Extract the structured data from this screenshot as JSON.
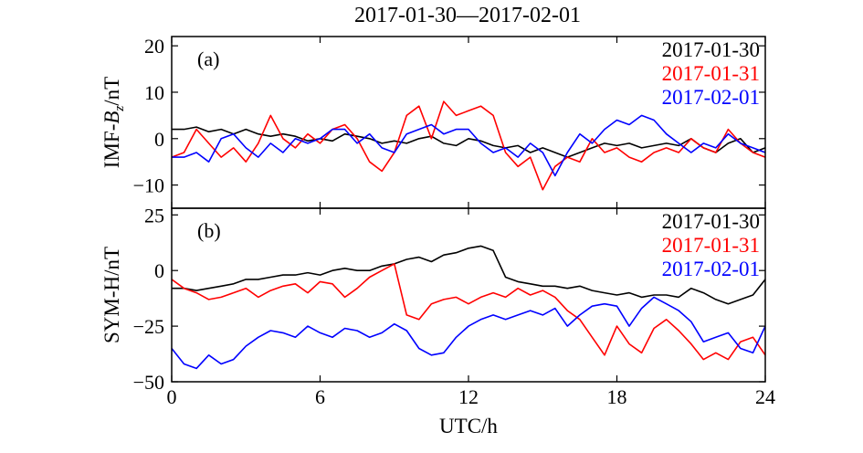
{
  "title": "2017-01-30—2017-02-01",
  "chart_data": [
    {
      "type": "line",
      "panel_label": "(a)",
      "ylabel_prefix": "IMF-",
      "ylabel_var": "B",
      "ylabel_sub": "z",
      "ylabel_suffix": "/nT",
      "xlim": [
        0,
        24
      ],
      "ylim": [
        -15,
        22
      ],
      "yticks": [
        -10,
        0,
        10,
        20
      ],
      "yticklabels": [
        "−10",
        "0",
        "10",
        "20"
      ],
      "legend_position": "top-right",
      "series": [
        {
          "name": "2017-01-30",
          "color": "#000000",
          "x": [
            0,
            0.5,
            1,
            1.5,
            2,
            2.5,
            3,
            3.5,
            4,
            4.5,
            5,
            5.5,
            6,
            6.5,
            7,
            7.5,
            8,
            8.5,
            9,
            9.5,
            10,
            10.5,
            11,
            11.5,
            12,
            12.5,
            13,
            13.5,
            14,
            14.5,
            15,
            15.5,
            16,
            16.5,
            17,
            17.5,
            18,
            18.5,
            19,
            19.5,
            20,
            20.5,
            21,
            21.5,
            22,
            22.5,
            23,
            23.5,
            24
          ],
          "values": [
            2,
            2,
            2.5,
            1.5,
            2,
            1,
            2,
            1,
            0.5,
            1,
            0.5,
            -0.5,
            0,
            -0.5,
            1,
            0.5,
            0,
            -1,
            -0.5,
            -1,
            0,
            0.5,
            -1,
            -1.5,
            0,
            -0.5,
            -1.5,
            -2,
            -1.5,
            -3,
            -2,
            -3,
            -4,
            -3,
            -2,
            -1,
            -1.5,
            -1,
            -2,
            -1.5,
            -1,
            -1.5,
            0,
            -2,
            -3,
            -1,
            0,
            -3,
            -2
          ]
        },
        {
          "name": "2017-01-31",
          "color": "#ff0000",
          "x": [
            0,
            0.5,
            1,
            1.5,
            2,
            2.5,
            3,
            3.5,
            4,
            4.5,
            5,
            5.5,
            6,
            6.5,
            7,
            7.5,
            8,
            8.5,
            9,
            9.5,
            10,
            10.5,
            11,
            11.5,
            12,
            12.5,
            13,
            13.5,
            14,
            14.5,
            15,
            15.5,
            16,
            16.5,
            17,
            17.5,
            18,
            18.5,
            19,
            19.5,
            20,
            20.5,
            21,
            21.5,
            22,
            22.5,
            23,
            23.5,
            24
          ],
          "values": [
            -4,
            -3,
            2,
            -1,
            -4,
            -2,
            -5,
            -1,
            5,
            0,
            -2,
            1,
            -1,
            2,
            3,
            0,
            -5,
            -7,
            -3,
            5,
            7,
            0,
            8,
            5,
            6,
            7,
            5,
            -3,
            -6,
            -4,
            -11,
            -6,
            -4,
            -5,
            0,
            -3,
            -2,
            -4,
            -5,
            -3,
            -2,
            -3,
            0,
            -2,
            -3,
            2,
            -1,
            -3,
            -4
          ]
        },
        {
          "name": "2017-02-01",
          "color": "#0000ff",
          "x": [
            0,
            0.5,
            1,
            1.5,
            2,
            2.5,
            3,
            3.5,
            4,
            4.5,
            5,
            5.5,
            6,
            6.5,
            7,
            7.5,
            8,
            8.5,
            9,
            9.5,
            10,
            10.5,
            11,
            11.5,
            12,
            12.5,
            13,
            13.5,
            14,
            14.5,
            15,
            15.5,
            16,
            16.5,
            17,
            17.5,
            18,
            18.5,
            19,
            19.5,
            20,
            20.5,
            21,
            21.5,
            22,
            22.5,
            23,
            23.5,
            24
          ],
          "values": [
            -4,
            -4,
            -3,
            -5,
            0,
            1,
            -2,
            -4,
            -1,
            -3,
            0,
            -1,
            0,
            2,
            2,
            -1,
            1,
            -2,
            -3,
            1,
            2,
            3,
            1,
            2,
            2,
            -1,
            -3,
            -2,
            -4,
            -1,
            -3,
            -8,
            -3,
            1,
            -1,
            2,
            4,
            3,
            5,
            4,
            1,
            -1,
            -3,
            -1,
            -2,
            1,
            -1,
            -2,
            -3
          ]
        }
      ]
    },
    {
      "type": "line",
      "panel_label": "(b)",
      "ylabel": "SYM-H/nT",
      "xlabel": "UTC/h",
      "xlim": [
        0,
        24
      ],
      "xticks": [
        0,
        6,
        12,
        18,
        24
      ],
      "xticklabels": [
        "0",
        "6",
        "12",
        "18",
        "24"
      ],
      "ylim": [
        -50,
        28
      ],
      "yticks": [
        -50,
        -25,
        0,
        25
      ],
      "yticklabels": [
        "−50",
        "−25",
        "0",
        "25"
      ],
      "legend_position": "top-right",
      "series": [
        {
          "name": "2017-01-30",
          "color": "#000000",
          "x": [
            0,
            0.5,
            1,
            1.5,
            2,
            2.5,
            3,
            3.5,
            4,
            4.5,
            5,
            5.5,
            6,
            6.5,
            7,
            7.5,
            8,
            8.5,
            9,
            9.5,
            10,
            10.5,
            11,
            11.5,
            12,
            12.5,
            13,
            13.5,
            14,
            14.5,
            15,
            15.5,
            16,
            16.5,
            17,
            17.5,
            18,
            18.5,
            19,
            19.5,
            20,
            20.5,
            21,
            21.5,
            22,
            22.5,
            23,
            23.5,
            24
          ],
          "values": [
            -8,
            -8,
            -9,
            -8,
            -7,
            -6,
            -4,
            -4,
            -3,
            -2,
            -2,
            -1,
            -2,
            0,
            1,
            0,
            0,
            2,
            3,
            5,
            6,
            4,
            7,
            8,
            10,
            11,
            9,
            -3,
            -5,
            -6,
            -7,
            -7,
            -8,
            -7,
            -9,
            -10,
            -11,
            -10,
            -12,
            -11,
            -11,
            -12,
            -8,
            -10,
            -13,
            -15,
            -13,
            -11,
            -4
          ]
        },
        {
          "name": "2017-01-31",
          "color": "#ff0000",
          "x": [
            0,
            0.5,
            1,
            1.5,
            2,
            2.5,
            3,
            3.5,
            4,
            4.5,
            5,
            5.5,
            6,
            6.5,
            7,
            7.5,
            8,
            8.5,
            9,
            9.5,
            10,
            10.5,
            11,
            11.5,
            12,
            12.5,
            13,
            13.5,
            14,
            14.5,
            15,
            15.5,
            16,
            16.5,
            17,
            17.5,
            18,
            18.5,
            19,
            19.5,
            20,
            20.5,
            21,
            21.5,
            22,
            22.5,
            23,
            23.5,
            24
          ],
          "values": [
            -4,
            -8,
            -10,
            -13,
            -12,
            -10,
            -8,
            -12,
            -9,
            -7,
            -6,
            -10,
            -5,
            -6,
            -12,
            -8,
            -3,
            0,
            3,
            -20,
            -22,
            -15,
            -13,
            -12,
            -15,
            -12,
            -10,
            -12,
            -8,
            -11,
            -9,
            -12,
            -18,
            -22,
            -30,
            -38,
            -25,
            -33,
            -37,
            -26,
            -22,
            -27,
            -33,
            -40,
            -37,
            -40,
            -32,
            -30,
            -38
          ]
        },
        {
          "name": "2017-02-01",
          "color": "#0000ff",
          "x": [
            0,
            0.5,
            1,
            1.5,
            2,
            2.5,
            3,
            3.5,
            4,
            4.5,
            5,
            5.5,
            6,
            6.5,
            7,
            7.5,
            8,
            8.5,
            9,
            9.5,
            10,
            10.5,
            11,
            11.5,
            12,
            12.5,
            13,
            13.5,
            14,
            14.5,
            15,
            15.5,
            16,
            16.5,
            17,
            17.5,
            18,
            18.5,
            19,
            19.5,
            20,
            20.5,
            21,
            21.5,
            22,
            22.5,
            23,
            23.5,
            24
          ],
          "values": [
            -35,
            -42,
            -44,
            -38,
            -42,
            -40,
            -34,
            -30,
            -27,
            -28,
            -30,
            -25,
            -28,
            -30,
            -26,
            -27,
            -30,
            -28,
            -24,
            -27,
            -35,
            -38,
            -37,
            -30,
            -25,
            -22,
            -20,
            -22,
            -20,
            -18,
            -20,
            -17,
            -25,
            -20,
            -16,
            -15,
            -16,
            -25,
            -17,
            -12,
            -15,
            -18,
            -23,
            -32,
            -30,
            -28,
            -35,
            -37,
            -25
          ]
        }
      ]
    }
  ]
}
